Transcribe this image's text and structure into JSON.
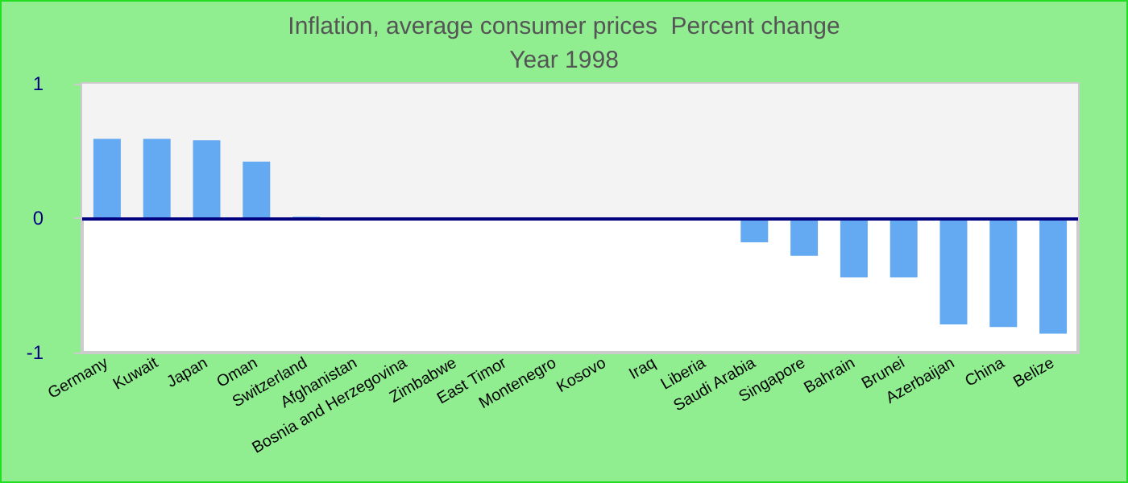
{
  "chart_data": {
    "type": "bar",
    "title": "Inflation, average consumer prices  Percent change",
    "subtitle": "Year 1998",
    "categories": [
      "Germany",
      "Kuwait",
      "Japan",
      "Oman",
      "Switzerland",
      "Afghanistan",
      "Bosnia and Herzegovina",
      "Zimbabwe",
      "East Timor",
      "Montenegro",
      "Kosovo",
      "Iraq",
      "Liberia",
      "Saudi Arabia",
      "Singapore",
      "Bahrain",
      "Brunei",
      "Azerbaijan",
      "China",
      "Belize"
    ],
    "values": [
      0.59,
      0.59,
      0.58,
      0.42,
      0.01,
      null,
      null,
      null,
      null,
      null,
      null,
      null,
      null,
      -0.18,
      -0.28,
      -0.44,
      -0.44,
      -0.79,
      -0.81,
      -0.86
    ],
    "color": "#63aaf2",
    "ylim": [
      -1,
      1
    ],
    "yticks": [
      -1,
      0,
      1
    ],
    "grid": false,
    "ref_lines": [
      {
        "axis": "y",
        "value": 0,
        "color": "#000080"
      }
    ],
    "bands": [
      {
        "axis": "y",
        "from": 0,
        "to": 1,
        "color": "#f3f3f3"
      }
    ]
  }
}
